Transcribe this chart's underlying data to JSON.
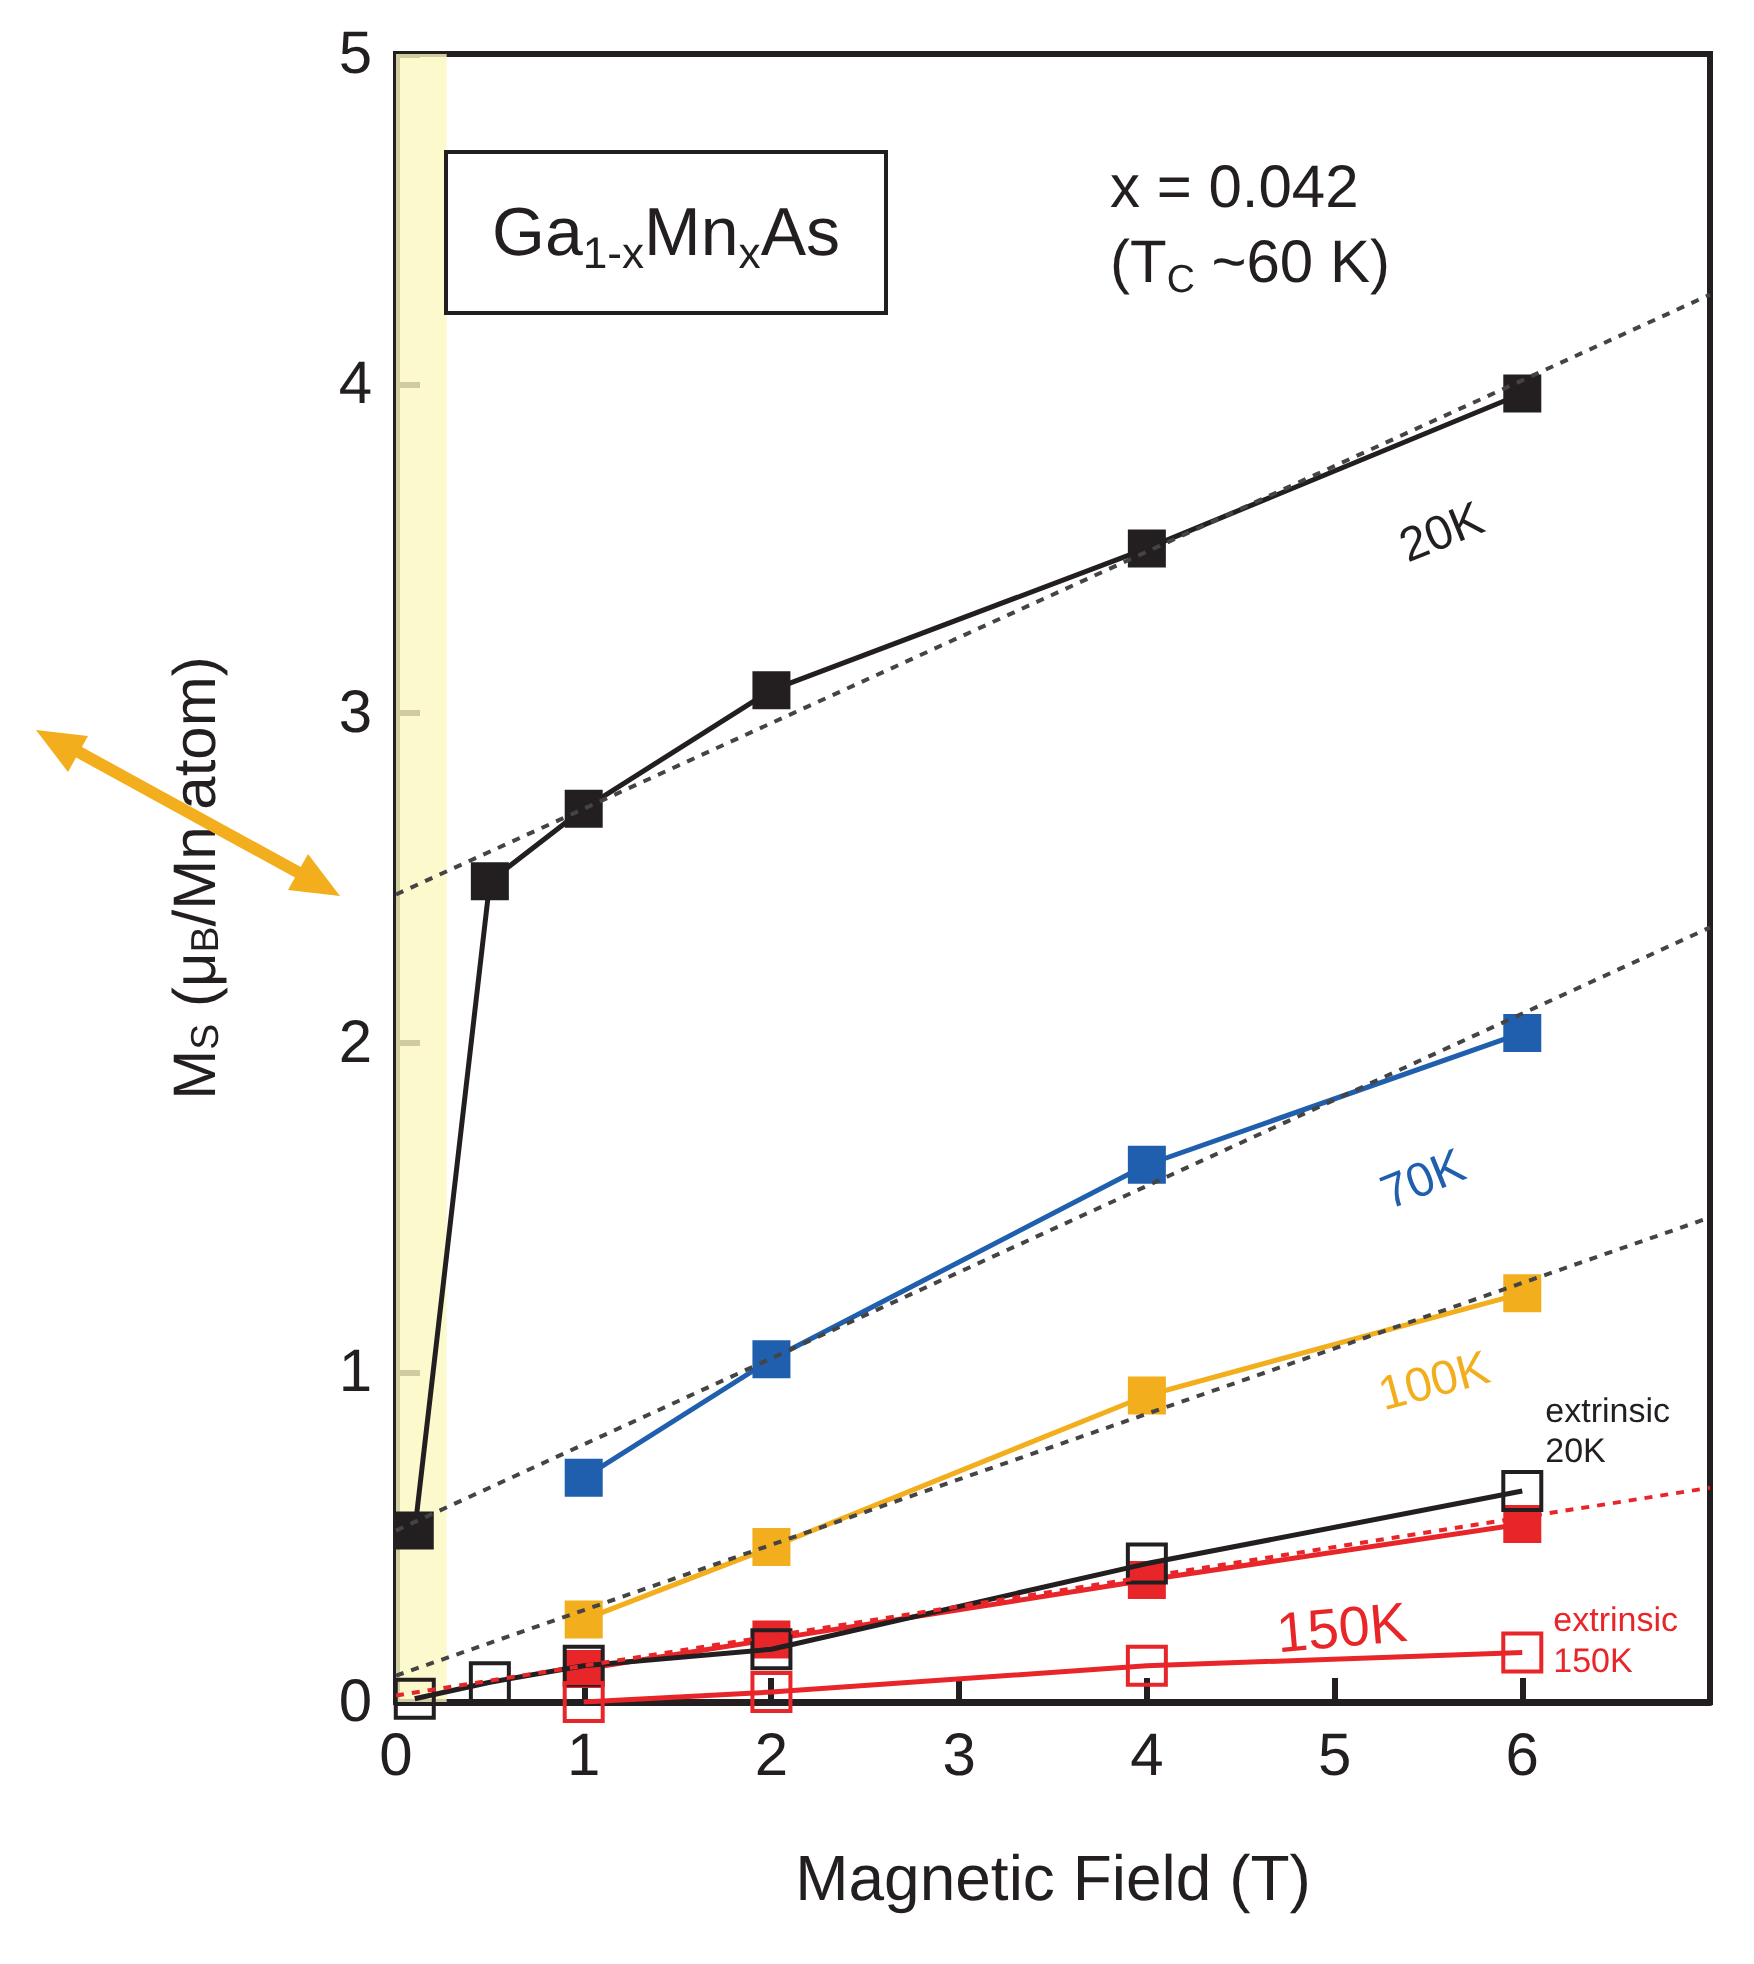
{
  "chart_data": {
    "type": "line",
    "xlabel": "Magnetic Field (T)",
    "ylabel": "M$_{S}$ (μ$_{B}$/Mn atom)",
    "xlim": [
      0,
      7
    ],
    "xticks": [
      0,
      1,
      2,
      3,
      4,
      5,
      6
    ],
    "ylim": [
      0,
      5
    ],
    "yticks": [
      0,
      1,
      2,
      3,
      4,
      5
    ],
    "grid": false,
    "legend": false,
    "marker": "square",
    "line_style": "solid",
    "annotations": [
      "Ga$_{1-x}$Mn$_{x}$As",
      "x = 0.042\n(T$_{C}$ ~60 K)"
    ],
    "bands": [
      {
        "axis": "x",
        "from": 0,
        "to": 0.27,
        "color": "#fbf7c0"
      }
    ],
    "series": [
      {
        "name": "20K",
        "color": "#231f20",
        "x": [
          0.1,
          0.5,
          1,
          2,
          4,
          6
        ],
        "values": [
          0.52,
          2.49,
          2.71,
          3.07,
          3.5,
          3.97
        ]
      },
      {
        "name": "70K",
        "color": "#1f5fad",
        "x": [
          1,
          2,
          4,
          6
        ],
        "values": [
          0.68,
          1.04,
          1.63,
          2.03
        ]
      },
      {
        "name": "100K",
        "color": "#f2ae1c",
        "x": [
          1,
          2,
          4,
          6
        ],
        "values": [
          0.25,
          0.47,
          0.93,
          1.24
        ]
      },
      {
        "name": "150K",
        "color": "#e8262a",
        "x": [
          1,
          2,
          4,
          6
        ],
        "values": [
          0.1,
          0.19,
          0.37,
          0.54
        ]
      },
      {
        "name": "extrinsic 20K",
        "color": "#231f20",
        "x": [
          0.1,
          0.5,
          1,
          2,
          4,
          6
        ],
        "values": [
          0.01,
          0.06,
          0.11,
          0.16,
          0.42,
          0.64
        ]
      },
      {
        "name": "extrinsic 150K",
        "color": "#e8262a",
        "x": [
          1,
          2,
          4,
          6
        ],
        "values": [
          0.0,
          0.03,
          0.11,
          0.15
        ]
      },
      {
        "type": "line",
        "color": "#444444",
        "line_style": "dashed",
        "marker": "none",
        "x": [
          0,
          7
        ],
        "values": [
          2.45,
          4.27
        ]
      },
      {
        "type": "line",
        "color": "#444444",
        "line_style": "dashed",
        "marker": "none",
        "x": [
          0,
          7
        ],
        "values": [
          0.52,
          2.35
        ]
      },
      {
        "type": "line",
        "color": "#444444",
        "line_style": "dashed",
        "marker": "none",
        "x": [
          0,
          7
        ],
        "values": [
          0.08,
          1.47
        ]
      },
      {
        "type": "line",
        "color": "#e8262a",
        "line_style": "dashed",
        "marker": "none",
        "x": [
          0,
          7
        ],
        "values": [
          0.02,
          0.65
        ]
      }
    ]
  }
}
